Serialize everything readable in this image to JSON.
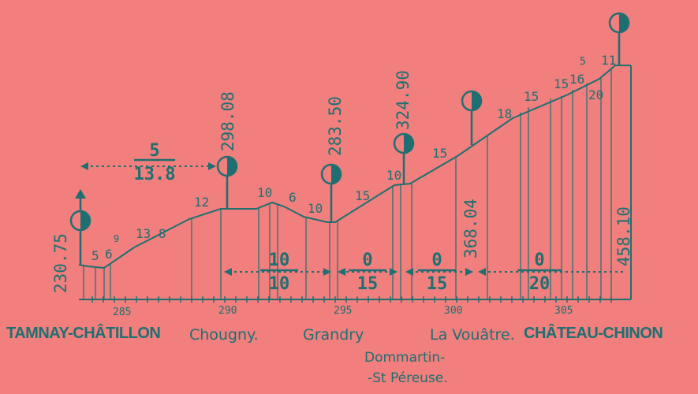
{
  "colors": {
    "background": "#f07f7d",
    "ink": "#1f6f72"
  },
  "stations": {
    "tamnay": "TAMNAY-CHÂTILLON",
    "chougny": "Chougny.",
    "grandry": "Grandry",
    "dommartin_1": "Dommartin-",
    "dommartin_2": "-St Péreuse.",
    "lavouatre": "La Vouâtre.",
    "chateau": "CHÂTEAU-CHINON"
  },
  "km_ticks": [
    "285",
    "290",
    "295",
    "300",
    "305"
  ],
  "altitudes": {
    "tamnay": "230.75",
    "chougny": "298.08",
    "grandry": "283.50",
    "dommartin": "324.90",
    "lavouatre": "368.04",
    "chateau": "458.10"
  },
  "gradients": [
    "5",
    "6",
    "9",
    "13.8",
    "12",
    "10",
    "6",
    "10",
    "15",
    "10",
    "15",
    "18",
    "15",
    "15",
    "16",
    "5",
    "20",
    "11"
  ],
  "fractions": {
    "f1_num": "5",
    "f1_den": "13.8",
    "f2_num": "10",
    "f2_den": "10",
    "f3_num": "0",
    "f3_den": "15",
    "f4_num": "0",
    "f4_den": "15",
    "f5_num": "0",
    "f5_den": "20"
  }
}
